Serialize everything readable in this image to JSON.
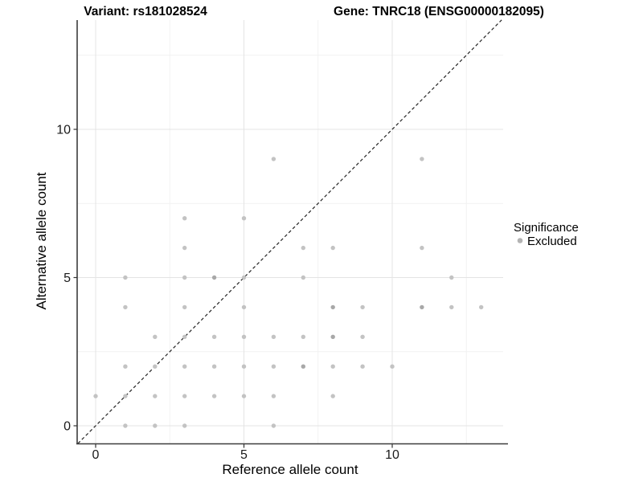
{
  "titles": {
    "variant": "Variant: rs181028524",
    "gene": "Gene: TNRC18 (ENSG00000182095)"
  },
  "legend": {
    "title": "Significance",
    "items": [
      {
        "label": "Excluded",
        "marker_color": "#b3b3b3"
      }
    ]
  },
  "colors": {
    "point": "#c3c3c3",
    "point_overplotted": "#a8a8a8",
    "grid_major": "#e4e4e4",
    "grid_minor": "#f2f2f2",
    "axis_line": "#3c3c3c",
    "tick_mark": "#333333",
    "identity_line": "#222222",
    "background": "#ffffff"
  },
  "chart_data": {
    "type": "scatter",
    "title": "Variant: rs181028524 — Gene: TNRC18 (ENSG00000182095)",
    "xlabel": "Reference allele count",
    "ylabel": "Alternative allele count",
    "xlim": [
      -0.65,
      13.7
    ],
    "ylim": [
      -0.6,
      13.69
    ],
    "x_major_ticks": [
      0,
      5,
      10
    ],
    "y_major_ticks": [
      0,
      5,
      10
    ],
    "x_minor_ticks": [
      2.5,
      7.5,
      12.5
    ],
    "y_minor_ticks": [
      2.5,
      7.5,
      12.5
    ],
    "grid": true,
    "legend_position": "right",
    "reference_line": {
      "kind": "identity",
      "equation": "y = x",
      "style": "dashed"
    },
    "series": [
      {
        "name": "Excluded",
        "points": [
          [
            0,
            1
          ],
          [
            1,
            0
          ],
          [
            1,
            1
          ],
          [
            1,
            2
          ],
          [
            1,
            4
          ],
          [
            1,
            5
          ],
          [
            2,
            0
          ],
          [
            2,
            1
          ],
          [
            2,
            2
          ],
          [
            2,
            3
          ],
          [
            3,
            0
          ],
          [
            3,
            1
          ],
          [
            3,
            2
          ],
          [
            3,
            3
          ],
          [
            3,
            4
          ],
          [
            3,
            5
          ],
          [
            3,
            6
          ],
          [
            3,
            7
          ],
          [
            4,
            1
          ],
          [
            4,
            2
          ],
          [
            4,
            3
          ],
          [
            4,
            5
          ],
          [
            5,
            1
          ],
          [
            5,
            2
          ],
          [
            5,
            3
          ],
          [
            5,
            4
          ],
          [
            5,
            5
          ],
          [
            5,
            7
          ],
          [
            6,
            0
          ],
          [
            6,
            1
          ],
          [
            6,
            2
          ],
          [
            6,
            3
          ],
          [
            6,
            9
          ],
          [
            7,
            2
          ],
          [
            7,
            3
          ],
          [
            7,
            5
          ],
          [
            7,
            6
          ],
          [
            8,
            1
          ],
          [
            8,
            2
          ],
          [
            8,
            3
          ],
          [
            8,
            4
          ],
          [
            8,
            6
          ],
          [
            9,
            2
          ],
          [
            9,
            3
          ],
          [
            9,
            4
          ],
          [
            10,
            2
          ],
          [
            11,
            4
          ],
          [
            11,
            6
          ],
          [
            11,
            9
          ],
          [
            12,
            4
          ],
          [
            12,
            5
          ],
          [
            13,
            4
          ]
        ],
        "overplotted_points": [
          [
            4,
            5
          ],
          [
            8,
            4
          ],
          [
            11,
            4
          ],
          [
            8,
            3
          ],
          [
            7,
            2
          ]
        ]
      }
    ]
  }
}
